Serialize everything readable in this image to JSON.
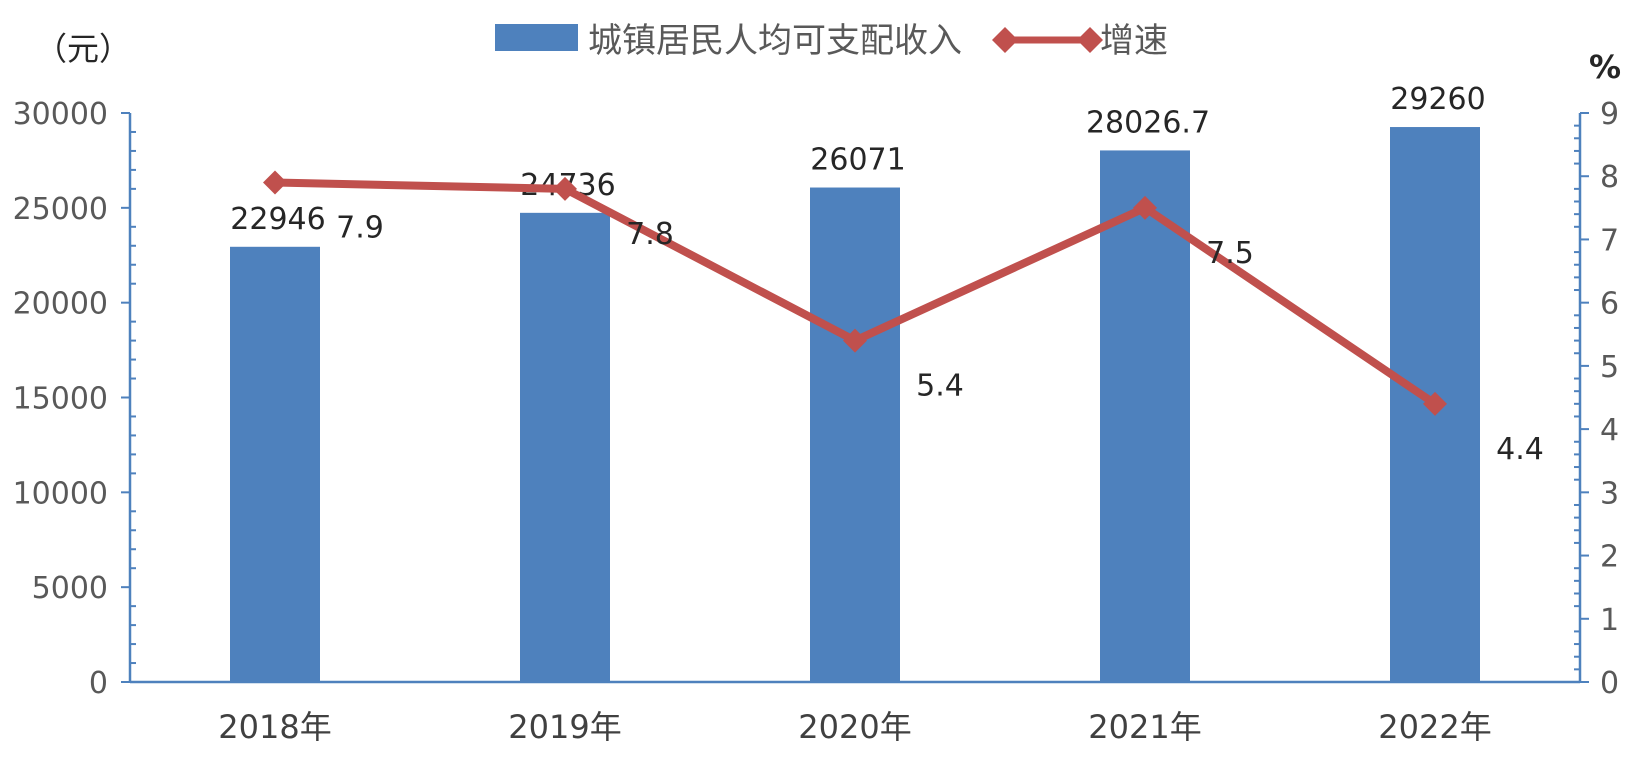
{
  "chart_data": {
    "type": "bar",
    "categories": [
      "2018年",
      "2019年",
      "2020年",
      "2021年",
      "2022年"
    ],
    "series": [
      {
        "name": "城镇居民人均可支配收入",
        "type": "bar",
        "axis": "left",
        "values": [
          22946,
          24736,
          26071,
          28026.7,
          29260
        ],
        "labels": [
          "22946",
          "24736",
          "26071",
          "28026.7",
          "29260"
        ],
        "color": "#4e81bd"
      },
      {
        "name": "增速",
        "type": "line",
        "axis": "right",
        "values": [
          7.9,
          7.8,
          5.4,
          7.5,
          4.4
        ],
        "labels": [
          "7.9",
          "7.8",
          "5.4",
          "7.5",
          "4.4"
        ],
        "color": "#c0504d",
        "marker": "diamond"
      }
    ],
    "y_left": {
      "label": "（元）",
      "lim": [
        0,
        30000
      ],
      "ticks": [
        "0",
        "5000",
        "10000",
        "15000",
        "20000",
        "25000",
        "30000"
      ]
    },
    "y_right": {
      "label": "%",
      "lim": [
        0,
        9
      ],
      "ticks": [
        "0",
        "1",
        "2",
        "3",
        "4",
        "5",
        "6",
        "7",
        "8",
        "9"
      ]
    },
    "legend_position": "top-center",
    "grid": false
  }
}
